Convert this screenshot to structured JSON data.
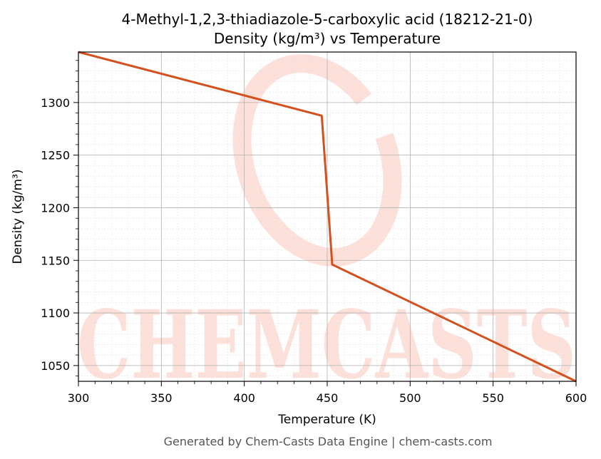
{
  "chart_data": {
    "type": "line",
    "title": "4-Methyl-1,2,3-thiadiazole-5-carboxylic acid (18212-21-0)",
    "subtitle": "Density (kg/m³) vs Temperature",
    "xlabel": "Temperature (K)",
    "ylabel": "Density (kg/m³)",
    "xlim": [
      300,
      600
    ],
    "ylim": [
      1035,
      1348
    ],
    "x_ticks": [
      300,
      350,
      400,
      450,
      500,
      550,
      600
    ],
    "y_ticks": [
      1050,
      1100,
      1150,
      1200,
      1250,
      1300
    ],
    "grid": true,
    "line_color": "#d4511e",
    "series": [
      {
        "x": [
          300,
          446.7,
          453.0,
          600
        ],
        "y": [
          1348,
          1287.5,
          1146,
          1035
        ]
      }
    ]
  },
  "watermark": {
    "text": "CHEMCASTS",
    "color": "#fde0d9"
  },
  "footer": "Generated by Chem-Casts Data Engine | chem-casts.com"
}
